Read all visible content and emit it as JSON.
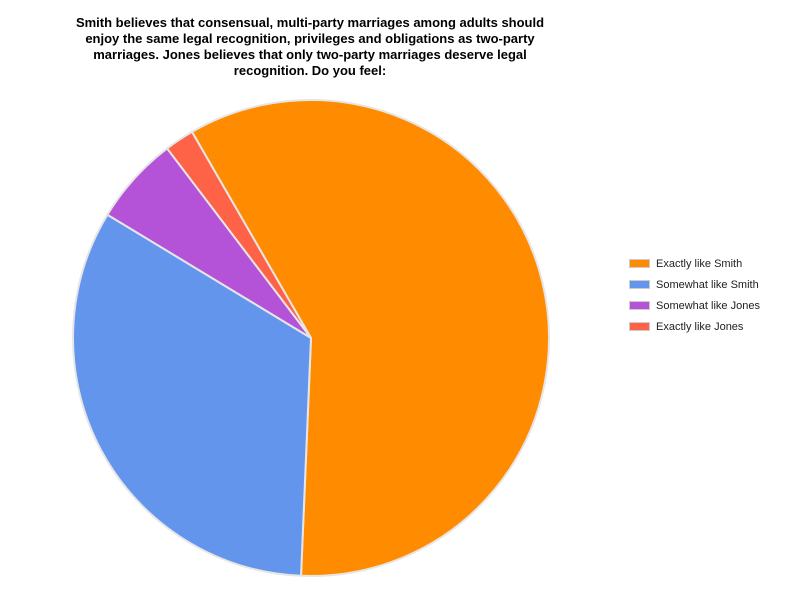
{
  "chart_data": {
    "type": "pie",
    "title": "Smith believes that consensual, multi-party marriages among adults should enjoy the same legal recognition, privileges and obligations as two-party marriages.  Jones believes that only two-party marriages deserve legal recognition.  Do you feel:",
    "legend_position": "right",
    "start_angle_deg": 330,
    "slices": [
      {
        "label": "Exactly like Smith",
        "value": 59,
        "color": "#ff8c00"
      },
      {
        "label": "Somewhat like Smith",
        "value": 33,
        "color": "#6495ed"
      },
      {
        "label": "Somewhat like Jones",
        "value": 6,
        "color": "#b452d8"
      },
      {
        "label": "Exactly like Jones",
        "value": 2,
        "color": "#ff6347"
      }
    ]
  }
}
